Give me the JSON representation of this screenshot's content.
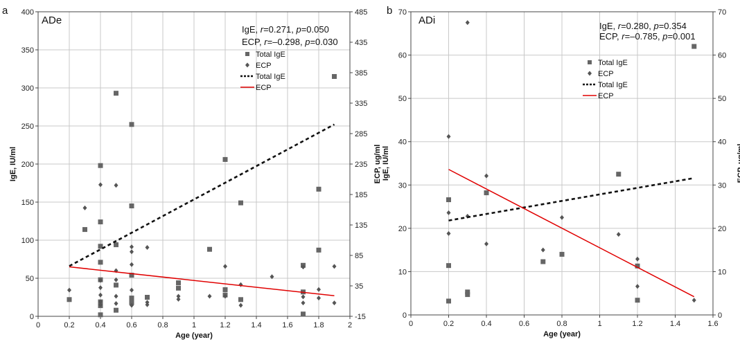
{
  "chart_data": [
    {
      "type": "scatter",
      "panel_label": "a",
      "title": "ADe",
      "stats": [
        {
          "label": "IgE",
          "r": "0.271",
          "p": "0.050"
        },
        {
          "label": "ECP",
          "r": "–0.298",
          "p": "0.030"
        }
      ],
      "xlabel": "Age (year)",
      "ylabel": "IgE, IU/ml",
      "y2label": "ECP, ug/ml",
      "xlim": [
        0,
        2
      ],
      "ylim": [
        0,
        400
      ],
      "y2lim": [
        -15,
        485
      ],
      "xticks": [
        "0",
        "0.2",
        "0.4",
        "0.6",
        "0.8",
        "1",
        "1.2",
        "1.4",
        "1.6",
        "1.8",
        "2"
      ],
      "yticks": [
        "0",
        "50",
        "100",
        "150",
        "200",
        "250",
        "300",
        "350",
        "400"
      ],
      "y2ticks": [
        "-15",
        "35",
        "85",
        "135",
        "185",
        "235",
        "285",
        "335",
        "385",
        "435",
        "485"
      ],
      "grid": true,
      "legend": {
        "position": "top-right",
        "items": [
          "Total IgE",
          "ECP",
          "Total IgE",
          "ECP"
        ]
      },
      "series": [
        {
          "name": "Total IgE",
          "kind": "points",
          "marker": "square",
          "axis": "left",
          "color": "#666666",
          "points": [
            [
              0.2,
              22
            ],
            [
              0.3,
              114
            ],
            [
              0.4,
              198
            ],
            [
              0.4,
              124
            ],
            [
              0.4,
              92
            ],
            [
              0.4,
              71
            ],
            [
              0.4,
              48
            ],
            [
              0.4,
              19
            ],
            [
              0.4,
              14
            ],
            [
              0.4,
              2
            ],
            [
              0.5,
              293
            ],
            [
              0.5,
              94
            ],
            [
              0.5,
              41
            ],
            [
              0.5,
              8
            ],
            [
              0.6,
              252
            ],
            [
              0.6,
              145
            ],
            [
              0.6,
              54
            ],
            [
              0.6,
              24
            ],
            [
              0.6,
              18
            ],
            [
              0.7,
              25
            ],
            [
              0.9,
              44
            ],
            [
              0.9,
              37
            ],
            [
              1.1,
              88
            ],
            [
              1.2,
              206
            ],
            [
              1.2,
              35
            ],
            [
              1.2,
              28
            ],
            [
              1.3,
              149
            ],
            [
              1.3,
              22
            ],
            [
              1.7,
              67
            ],
            [
              1.7,
              32
            ],
            [
              1.7,
              3
            ],
            [
              1.8,
              167
            ],
            [
              1.8,
              87
            ],
            [
              1.9,
              315
            ]
          ]
        },
        {
          "name": "ECP",
          "kind": "points",
          "marker": "diamond",
          "axis": "right",
          "color": "#555555",
          "points": [
            [
              0.2,
              28
            ],
            [
              0.3,
              163
            ],
            [
              0.4,
              201
            ],
            [
              0.4,
              44
            ],
            [
              0.4,
              32
            ],
            [
              0.4,
              20
            ],
            [
              0.4,
              9
            ],
            [
              0.4,
              4
            ],
            [
              0.5,
              200
            ],
            [
              0.5,
              60
            ],
            [
              0.5,
              45
            ],
            [
              0.5,
              18
            ],
            [
              0.5,
              6
            ],
            [
              0.6,
              99
            ],
            [
              0.6,
              91
            ],
            [
              0.6,
              70
            ],
            [
              0.6,
              28
            ],
            [
              0.6,
              3
            ],
            [
              0.7,
              98
            ],
            [
              0.7,
              8
            ],
            [
              0.7,
              4
            ],
            [
              0.9,
              18
            ],
            [
              0.9,
              13
            ],
            [
              1.1,
              18
            ],
            [
              1.2,
              67
            ],
            [
              1.2,
              18
            ],
            [
              1.3,
              37
            ],
            [
              1.3,
              3
            ],
            [
              1.5,
              50
            ],
            [
              1.7,
              66
            ],
            [
              1.7,
              17
            ],
            [
              1.7,
              7
            ],
            [
              1.8,
              29
            ],
            [
              1.8,
              15
            ],
            [
              1.9,
              67
            ],
            [
              1.9,
              7
            ]
          ]
        },
        {
          "name": "Total IgE",
          "kind": "trend",
          "style": "dashed",
          "axis": "left",
          "color": "#111111",
          "points": [
            [
              0.2,
              66
            ],
            [
              1.9,
              252
            ]
          ]
        },
        {
          "name": "ECP",
          "kind": "trend",
          "style": "solid",
          "axis": "left",
          "color": "#e00000",
          "points": [
            [
              0.2,
              65
            ],
            [
              1.9,
              27
            ]
          ]
        }
      ]
    },
    {
      "type": "scatter",
      "panel_label": "b",
      "title": "ADi",
      "stats": [
        {
          "label": "IgE",
          "r": "0.280",
          "p": "0.354"
        },
        {
          "label": "ECP",
          "r": "–0.785",
          "p": "0.001"
        }
      ],
      "xlabel": "Age (year)",
      "ylabel": "IgE, IU/ml",
      "y2label": "ECP, ug/ml",
      "xlim": [
        0,
        1.6
      ],
      "ylim": [
        0,
        70
      ],
      "y2lim": [
        0,
        70
      ],
      "xticks": [
        "0",
        "0.2",
        "0.4",
        "0.6",
        "0.8",
        "1",
        "1.2",
        "1.4",
        "1.6"
      ],
      "yticks": [
        "0",
        "10",
        "20",
        "30",
        "40",
        "50",
        "60",
        "70"
      ],
      "y2ticks": [
        "0",
        "10",
        "20",
        "30",
        "40",
        "50",
        "60",
        "70"
      ],
      "grid": true,
      "legend": {
        "position": "top-right",
        "items": [
          "Total IgE",
          "ECP",
          "Total IgE",
          "ECP"
        ]
      },
      "series": [
        {
          "name": "Total IgE",
          "kind": "points",
          "marker": "square",
          "axis": "left",
          "color": "#666666",
          "points": [
            [
              0.2,
              26.6
            ],
            [
              0.2,
              11.4
            ],
            [
              0.2,
              3.2
            ],
            [
              0.3,
              5.3
            ],
            [
              0.3,
              4.7
            ],
            [
              0.4,
              28.2
            ],
            [
              0.7,
              12.3
            ],
            [
              0.8,
              14
            ],
            [
              1.1,
              32.5
            ],
            [
              1.2,
              11.3
            ],
            [
              1.2,
              3.4
            ],
            [
              1.5,
              62
            ]
          ]
        },
        {
          "name": "ECP",
          "kind": "points",
          "marker": "diamond",
          "axis": "right",
          "color": "#555555",
          "points": [
            [
              0.2,
              41.2
            ],
            [
              0.2,
              23.6
            ],
            [
              0.2,
              18.8
            ],
            [
              0.3,
              67.5
            ],
            [
              0.3,
              22.8
            ],
            [
              0.4,
              32.1
            ],
            [
              0.4,
              16.4
            ],
            [
              0.7,
              15
            ],
            [
              0.8,
              22.5
            ],
            [
              1.1,
              18.6
            ],
            [
              1.2,
              12.9
            ],
            [
              1.2,
              6.6
            ],
            [
              1.5,
              3.4
            ]
          ]
        },
        {
          "name": "Total IgE",
          "kind": "trend",
          "style": "dashed",
          "axis": "left",
          "color": "#111111",
          "points": [
            [
              0.2,
              21.8
            ],
            [
              1.5,
              31.6
            ]
          ]
        },
        {
          "name": "ECP",
          "kind": "trend",
          "style": "solid",
          "axis": "left",
          "color": "#e00000",
          "points": [
            [
              0.2,
              33.6
            ],
            [
              1.5,
              4.2
            ]
          ]
        }
      ]
    }
  ]
}
